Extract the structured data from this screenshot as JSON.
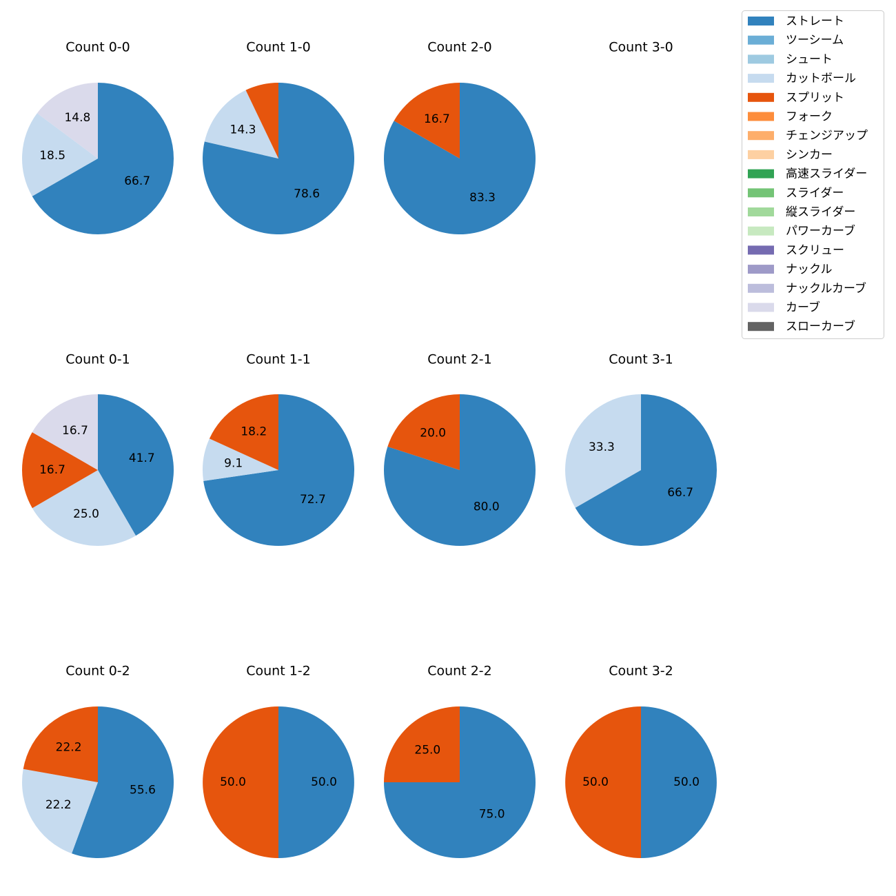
{
  "chart_data": {
    "type": "pie",
    "legend_position": "top-right",
    "legend": [
      {
        "name": "ストレート",
        "color": "#3182bd"
      },
      {
        "name": "ツーシーム",
        "color": "#6baed6"
      },
      {
        "name": "シュート",
        "color": "#9ecae1"
      },
      {
        "name": "カットボール",
        "color": "#c6dbef"
      },
      {
        "name": "スプリット",
        "color": "#e6550d"
      },
      {
        "name": "フォーク",
        "color": "#fd8d3c"
      },
      {
        "name": "チェンジアップ",
        "color": "#fdae6b"
      },
      {
        "name": "シンカー",
        "color": "#fdd0a2"
      },
      {
        "name": "高速スライダー",
        "color": "#31a354"
      },
      {
        "name": "スライダー",
        "color": "#74c476"
      },
      {
        "name": "縦スライダー",
        "color": "#a1d99b"
      },
      {
        "name": "パワーカーブ",
        "color": "#c7e9c0"
      },
      {
        "name": "スクリュー",
        "color": "#756bb1"
      },
      {
        "name": "ナックル",
        "color": "#9e9ac8"
      },
      {
        "name": "ナックルカーブ",
        "color": "#bcbddc"
      },
      {
        "name": "カーブ",
        "color": "#dadaeb"
      },
      {
        "name": "スローカーブ",
        "color": "#636363"
      }
    ],
    "charts": [
      {
        "title": "Count 0-0",
        "slices": [
          {
            "pitch": "ストレート",
            "value": 66.7,
            "label": "66.7"
          },
          {
            "pitch": "カットボール",
            "value": 18.5,
            "label": "18.5"
          },
          {
            "pitch": "カーブ",
            "value": 14.8,
            "label": "14.8"
          }
        ]
      },
      {
        "title": "Count 1-0",
        "slices": [
          {
            "pitch": "ストレート",
            "value": 78.6,
            "label": "78.6"
          },
          {
            "pitch": "カットボール",
            "value": 14.3,
            "label": "14.3"
          },
          {
            "pitch": "スプリット",
            "value": 7.1,
            "label": ""
          }
        ]
      },
      {
        "title": "Count 2-0",
        "slices": [
          {
            "pitch": "ストレート",
            "value": 83.3,
            "label": "83.3"
          },
          {
            "pitch": "スプリット",
            "value": 16.7,
            "label": "16.7"
          }
        ]
      },
      {
        "title": "Count 3-0",
        "slices": []
      },
      {
        "title": "Count 0-1",
        "slices": [
          {
            "pitch": "ストレート",
            "value": 41.7,
            "label": "41.7"
          },
          {
            "pitch": "カットボール",
            "value": 25.0,
            "label": "25.0"
          },
          {
            "pitch": "スプリット",
            "value": 16.7,
            "label": "16.7"
          },
          {
            "pitch": "カーブ",
            "value": 16.7,
            "label": "16.7"
          }
        ]
      },
      {
        "title": "Count 1-1",
        "slices": [
          {
            "pitch": "ストレート",
            "value": 72.7,
            "label": "72.7"
          },
          {
            "pitch": "カットボール",
            "value": 9.1,
            "label": "9.1"
          },
          {
            "pitch": "スプリット",
            "value": 18.2,
            "label": "18.2"
          }
        ]
      },
      {
        "title": "Count 2-1",
        "slices": [
          {
            "pitch": "ストレート",
            "value": 80.0,
            "label": "80.0"
          },
          {
            "pitch": "スプリット",
            "value": 20.0,
            "label": "20.0"
          }
        ]
      },
      {
        "title": "Count 3-1",
        "slices": [
          {
            "pitch": "ストレート",
            "value": 66.7,
            "label": "66.7"
          },
          {
            "pitch": "カットボール",
            "value": 33.3,
            "label": "33.3"
          }
        ]
      },
      {
        "title": "Count 0-2",
        "slices": [
          {
            "pitch": "ストレート",
            "value": 55.6,
            "label": "55.6"
          },
          {
            "pitch": "カットボール",
            "value": 22.2,
            "label": "22.2"
          },
          {
            "pitch": "スプリット",
            "value": 22.2,
            "label": "22.2"
          }
        ]
      },
      {
        "title": "Count 1-2",
        "slices": [
          {
            "pitch": "ストレート",
            "value": 50.0,
            "label": "50.0"
          },
          {
            "pitch": "スプリット",
            "value": 50.0,
            "label": "50.0"
          }
        ]
      },
      {
        "title": "Count 2-2",
        "slices": [
          {
            "pitch": "ストレート",
            "value": 75.0,
            "label": "75.0"
          },
          {
            "pitch": "スプリット",
            "value": 25.0,
            "label": "25.0"
          }
        ]
      },
      {
        "title": "Count 3-2",
        "slices": [
          {
            "pitch": "ストレート",
            "value": 50.0,
            "label": "50.0"
          },
          {
            "pitch": "スプリット",
            "value": 50.0,
            "label": "50.0"
          }
        ]
      }
    ]
  }
}
